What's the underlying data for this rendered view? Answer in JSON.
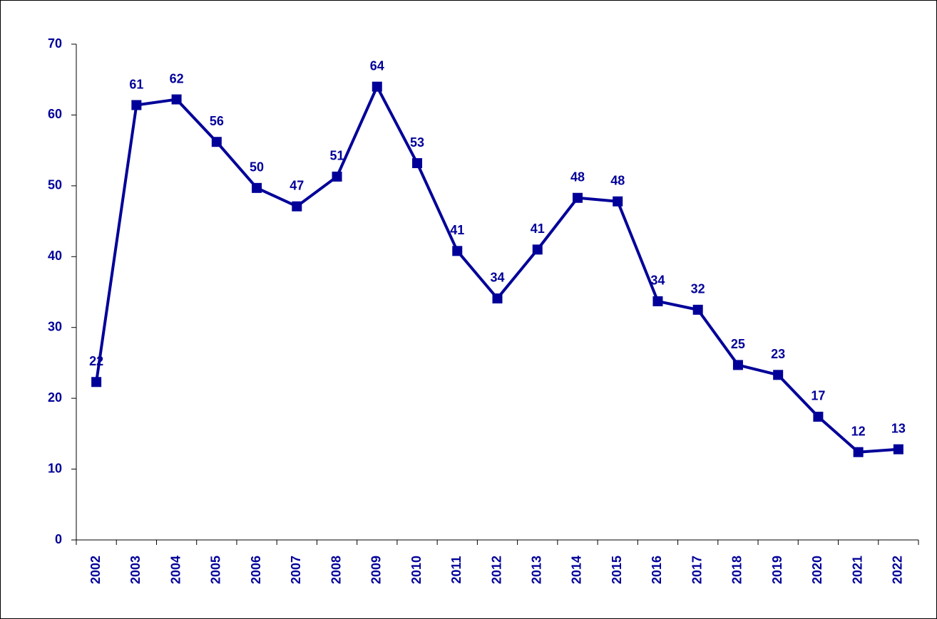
{
  "chart_data": {
    "type": "line",
    "categories": [
      "2002",
      "2003",
      "2004",
      "2005",
      "2006",
      "2007",
      "2008",
      "2009",
      "2010",
      "2011",
      "2012",
      "2013",
      "2014",
      "2015",
      "2016",
      "2017",
      "2018",
      "2019",
      "2020",
      "2021",
      "2022"
    ],
    "series": [
      {
        "color": "#000099",
        "values": [
          22.3,
          61.4,
          62.2,
          56.2,
          49.7,
          47.1,
          51.3,
          64.0,
          53.2,
          40.8,
          34.1,
          41.0,
          48.3,
          47.8,
          33.7,
          32.5,
          24.7,
          23.3,
          17.4,
          12.4,
          12.8
        ],
        "value_labels": [
          "22",
          "61",
          "62",
          "56",
          "50",
          "47",
          "51",
          "64",
          "53",
          "41",
          "34",
          "41",
          "48",
          "48",
          "34",
          "32",
          "25",
          "23",
          "17",
          "12",
          "13"
        ]
      }
    ],
    "ylim": [
      0,
      70
    ],
    "yticks": [
      0,
      10,
      20,
      30,
      40,
      50,
      60,
      70
    ]
  }
}
